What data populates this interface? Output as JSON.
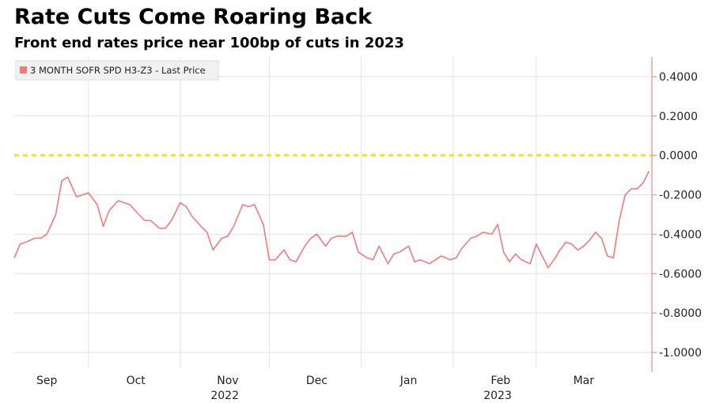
{
  "chart_data": {
    "type": "line",
    "title": "Rate Cuts Come Roaring Back",
    "subtitle": "Front end rates price near 100bp of cuts in 2023",
    "legend": "3 MONTH SOFR SPD H3-Z3 - Last Price",
    "y_ticks": [
      "0.4000",
      "0.2000",
      "0.0000",
      "-0.2000",
      "-0.4000",
      "-0.6000",
      "-0.8000",
      "-1.0000"
    ],
    "y_tick_values": [
      0.4,
      0.2,
      0.0,
      -0.2,
      -0.4,
      -0.6,
      -0.8,
      -1.0
    ],
    "ylim": [
      -1.08,
      0.5
    ],
    "x_month_labels": [
      {
        "label": "Sep",
        "date": "2022-09-01"
      },
      {
        "label": "Oct",
        "date": "2022-10-01"
      },
      {
        "label": "Nov",
        "date": "2022-11-01"
      },
      {
        "label": "Dec",
        "date": "2022-12-01"
      },
      {
        "label": "Jan",
        "date": "2023-01-01"
      },
      {
        "label": "Feb",
        "date": "2023-02-01"
      },
      {
        "label": "Mar",
        "date": "2023-03-01"
      }
    ],
    "x_year_labels": [
      {
        "label": "2022",
        "date": "2022-11-01"
      },
      {
        "label": "2023",
        "date": "2023-02-01"
      }
    ],
    "xlim": [
      "2022-08-22",
      "2023-03-25"
    ],
    "reference_line": {
      "value": 0.0,
      "style": "dashed",
      "color": "#f5e61c"
    },
    "series": [
      {
        "color": "#f27a7a",
        "points": [
          [
            "2022-08-22",
            -0.52
          ],
          [
            "2022-08-24",
            -0.45
          ],
          [
            "2022-08-26",
            -0.44
          ],
          [
            "2022-08-29",
            -0.42
          ],
          [
            "2022-08-31",
            -0.42
          ],
          [
            "2022-09-02",
            -0.4
          ],
          [
            "2022-09-05",
            -0.3
          ],
          [
            "2022-09-07",
            -0.13
          ],
          [
            "2022-09-09",
            -0.11
          ],
          [
            "2022-09-12",
            -0.21
          ],
          [
            "2022-09-14",
            -0.2
          ],
          [
            "2022-09-16",
            -0.19
          ],
          [
            "2022-09-19",
            -0.25
          ],
          [
            "2022-09-21",
            -0.36
          ],
          [
            "2022-09-23",
            -0.28
          ],
          [
            "2022-09-26",
            -0.23
          ],
          [
            "2022-09-28",
            -0.24
          ],
          [
            "2022-09-30",
            -0.25
          ],
          [
            "2022-10-03",
            -0.3
          ],
          [
            "2022-10-05",
            -0.33
          ],
          [
            "2022-10-07",
            -0.33
          ],
          [
            "2022-10-10",
            -0.37
          ],
          [
            "2022-10-12",
            -0.37
          ],
          [
            "2022-10-14",
            -0.33
          ],
          [
            "2022-10-17",
            -0.24
          ],
          [
            "2022-10-19",
            -0.26
          ],
          [
            "2022-10-21",
            -0.31
          ],
          [
            "2022-10-24",
            -0.36
          ],
          [
            "2022-10-26",
            -0.39
          ],
          [
            "2022-10-28",
            -0.48
          ],
          [
            "2022-10-31",
            -0.42
          ],
          [
            "2022-11-02",
            -0.41
          ],
          [
            "2022-11-04",
            -0.36
          ],
          [
            "2022-11-07",
            -0.25
          ],
          [
            "2022-11-09",
            -0.26
          ],
          [
            "2022-11-11",
            -0.25
          ],
          [
            "2022-11-14",
            -0.35
          ],
          [
            "2022-11-16",
            -0.53
          ],
          [
            "2022-11-18",
            -0.53
          ],
          [
            "2022-11-21",
            -0.48
          ],
          [
            "2022-11-23",
            -0.53
          ],
          [
            "2022-11-25",
            -0.54
          ],
          [
            "2022-11-28",
            -0.46
          ],
          [
            "2022-11-30",
            -0.42
          ],
          [
            "2022-12-02",
            -0.4
          ],
          [
            "2022-12-05",
            -0.46
          ],
          [
            "2022-12-07",
            -0.42
          ],
          [
            "2022-12-09",
            -0.41
          ],
          [
            "2022-12-12",
            -0.41
          ],
          [
            "2022-12-14",
            -0.39
          ],
          [
            "2022-12-16",
            -0.49
          ],
          [
            "2022-12-19",
            -0.52
          ],
          [
            "2022-12-21",
            -0.53
          ],
          [
            "2022-12-23",
            -0.46
          ],
          [
            "2022-12-26",
            -0.55
          ],
          [
            "2022-12-28",
            -0.5
          ],
          [
            "2022-12-30",
            -0.49
          ],
          [
            "2023-01-02",
            -0.46
          ],
          [
            "2023-01-04",
            -0.54
          ],
          [
            "2023-01-06",
            -0.53
          ],
          [
            "2023-01-09",
            -0.55
          ],
          [
            "2023-01-11",
            -0.53
          ],
          [
            "2023-01-13",
            -0.51
          ],
          [
            "2023-01-16",
            -0.53
          ],
          [
            "2023-01-18",
            -0.52
          ],
          [
            "2023-01-20",
            -0.47
          ],
          [
            "2023-01-23",
            -0.42
          ],
          [
            "2023-01-25",
            -0.41
          ],
          [
            "2023-01-27",
            -0.39
          ],
          [
            "2023-01-30",
            -0.4
          ],
          [
            "2023-02-01",
            -0.35
          ],
          [
            "2023-02-03",
            -0.49
          ],
          [
            "2023-02-05",
            -0.54
          ],
          [
            "2023-02-07",
            -0.5
          ],
          [
            "2023-02-09",
            -0.53
          ],
          [
            "2023-02-12",
            -0.55
          ],
          [
            "2023-02-14",
            -0.45
          ],
          [
            "2023-02-16",
            -0.51
          ],
          [
            "2023-02-18",
            -0.57
          ],
          [
            "2023-02-20",
            -0.53
          ],
          [
            "2023-02-22",
            -0.48
          ],
          [
            "2023-02-24",
            -0.44
          ],
          [
            "2023-02-26",
            -0.45
          ],
          [
            "2023-02-28",
            -0.48
          ],
          [
            "2023-03-02",
            -0.46
          ],
          [
            "2023-03-04",
            -0.43
          ],
          [
            "2023-03-06",
            -0.39
          ],
          [
            "2023-03-08",
            -0.42
          ],
          [
            "2023-03-10",
            -0.51
          ],
          [
            "2023-03-12",
            -0.52
          ],
          [
            "2023-03-14",
            -0.33
          ],
          [
            "2023-03-16",
            -0.2
          ],
          [
            "2023-03-18",
            -0.17
          ],
          [
            "2023-03-20",
            -0.17
          ],
          [
            "2023-03-22",
            -0.14
          ],
          [
            "2023-03-24",
            -0.08
          ]
        ]
      }
    ],
    "grid": true,
    "legend_position": "top-left"
  }
}
